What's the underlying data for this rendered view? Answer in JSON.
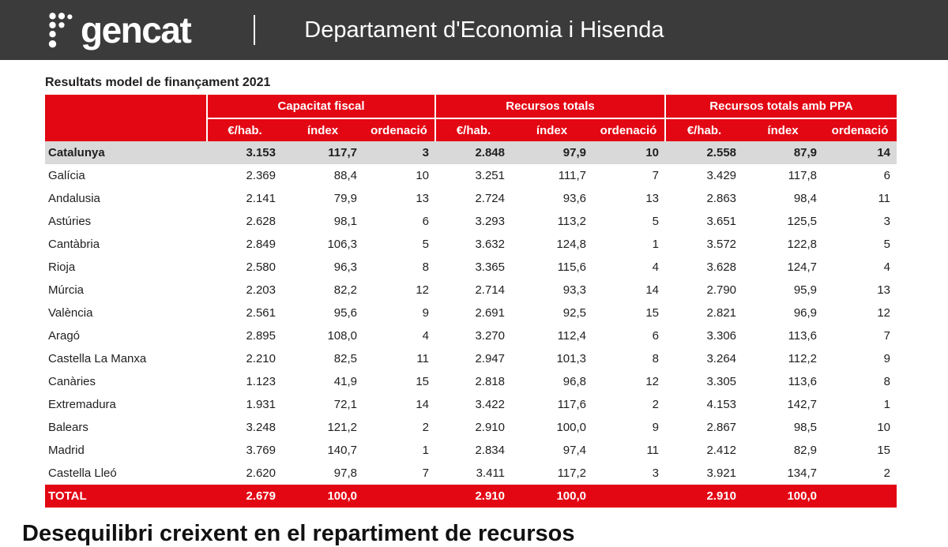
{
  "header": {
    "logo_text": "gencat",
    "department": "Departament d'Economia i Hisenda"
  },
  "main": {
    "table_title": "Resultats model de finançament 2021",
    "bottom_heading": "Desequilibri creixent en el repartiment de recursos"
  },
  "table": {
    "groups": [
      {
        "label": "Capacitat fiscal"
      },
      {
        "label": "Recursos totals"
      },
      {
        "label": "Recursos totals amb PPA"
      }
    ],
    "subheaders": [
      "€/hab.",
      "índex",
      "ordenació"
    ],
    "rows": [
      {
        "name": "Catalunya",
        "highlight": true,
        "values": [
          "3.153",
          "117,7",
          "3",
          "2.848",
          "97,9",
          "10",
          "2.558",
          "87,9",
          "14"
        ]
      },
      {
        "name": "Galícia",
        "values": [
          "2.369",
          "88,4",
          "10",
          "3.251",
          "111,7",
          "7",
          "3.429",
          "117,8",
          "6"
        ]
      },
      {
        "name": "Andalusia",
        "values": [
          "2.141",
          "79,9",
          "13",
          "2.724",
          "93,6",
          "13",
          "2.863",
          "98,4",
          "11"
        ]
      },
      {
        "name": "Astúries",
        "values": [
          "2.628",
          "98,1",
          "6",
          "3.293",
          "113,2",
          "5",
          "3.651",
          "125,5",
          "3"
        ]
      },
      {
        "name": "Cantàbria",
        "values": [
          "2.849",
          "106,3",
          "5",
          "3.632",
          "124,8",
          "1",
          "3.572",
          "122,8",
          "5"
        ]
      },
      {
        "name": "Rioja",
        "values": [
          "2.580",
          "96,3",
          "8",
          "3.365",
          "115,6",
          "4",
          "3.628",
          "124,7",
          "4"
        ]
      },
      {
        "name": "Múrcia",
        "values": [
          "2.203",
          "82,2",
          "12",
          "2.714",
          "93,3",
          "14",
          "2.790",
          "95,9",
          "13"
        ]
      },
      {
        "name": "València",
        "values": [
          "2.561",
          "95,6",
          "9",
          "2.691",
          "92,5",
          "15",
          "2.821",
          "96,9",
          "12"
        ]
      },
      {
        "name": "Aragó",
        "values": [
          "2.895",
          "108,0",
          "4",
          "3.270",
          "112,4",
          "6",
          "3.306",
          "113,6",
          "7"
        ]
      },
      {
        "name": "Castella La Manxa",
        "values": [
          "2.210",
          "82,5",
          "11",
          "2.947",
          "101,3",
          "8",
          "3.264",
          "112,2",
          "9"
        ]
      },
      {
        "name": "Canàries",
        "values": [
          "1.123",
          "41,9",
          "15",
          "2.818",
          "96,8",
          "12",
          "3.305",
          "113,6",
          "8"
        ]
      },
      {
        "name": "Extremadura",
        "values": [
          "1.931",
          "72,1",
          "14",
          "3.422",
          "117,6",
          "2",
          "4.153",
          "142,7",
          "1"
        ]
      },
      {
        "name": "Balears",
        "values": [
          "3.248",
          "121,2",
          "2",
          "2.910",
          "100,0",
          "9",
          "2.867",
          "98,5",
          "10"
        ]
      },
      {
        "name": "Madrid",
        "values": [
          "3.769",
          "140,7",
          "1",
          "2.834",
          "97,4",
          "11",
          "2.412",
          "82,9",
          "15"
        ]
      },
      {
        "name": "Castella Lleó",
        "values": [
          "2.620",
          "97,8",
          "7",
          "3.411",
          "117,2",
          "3",
          "3.921",
          "134,7",
          "2"
        ]
      },
      {
        "name": "TOTAL",
        "total": true,
        "values": [
          "2.679",
          "100,0",
          "",
          "2.910",
          "100,0",
          "",
          "2.910",
          "100,0",
          ""
        ]
      }
    ]
  },
  "colors": {
    "accent_red": "#e30613",
    "topbar_gray": "#3b3b3b",
    "highlight_row": "#d9d9d9"
  }
}
